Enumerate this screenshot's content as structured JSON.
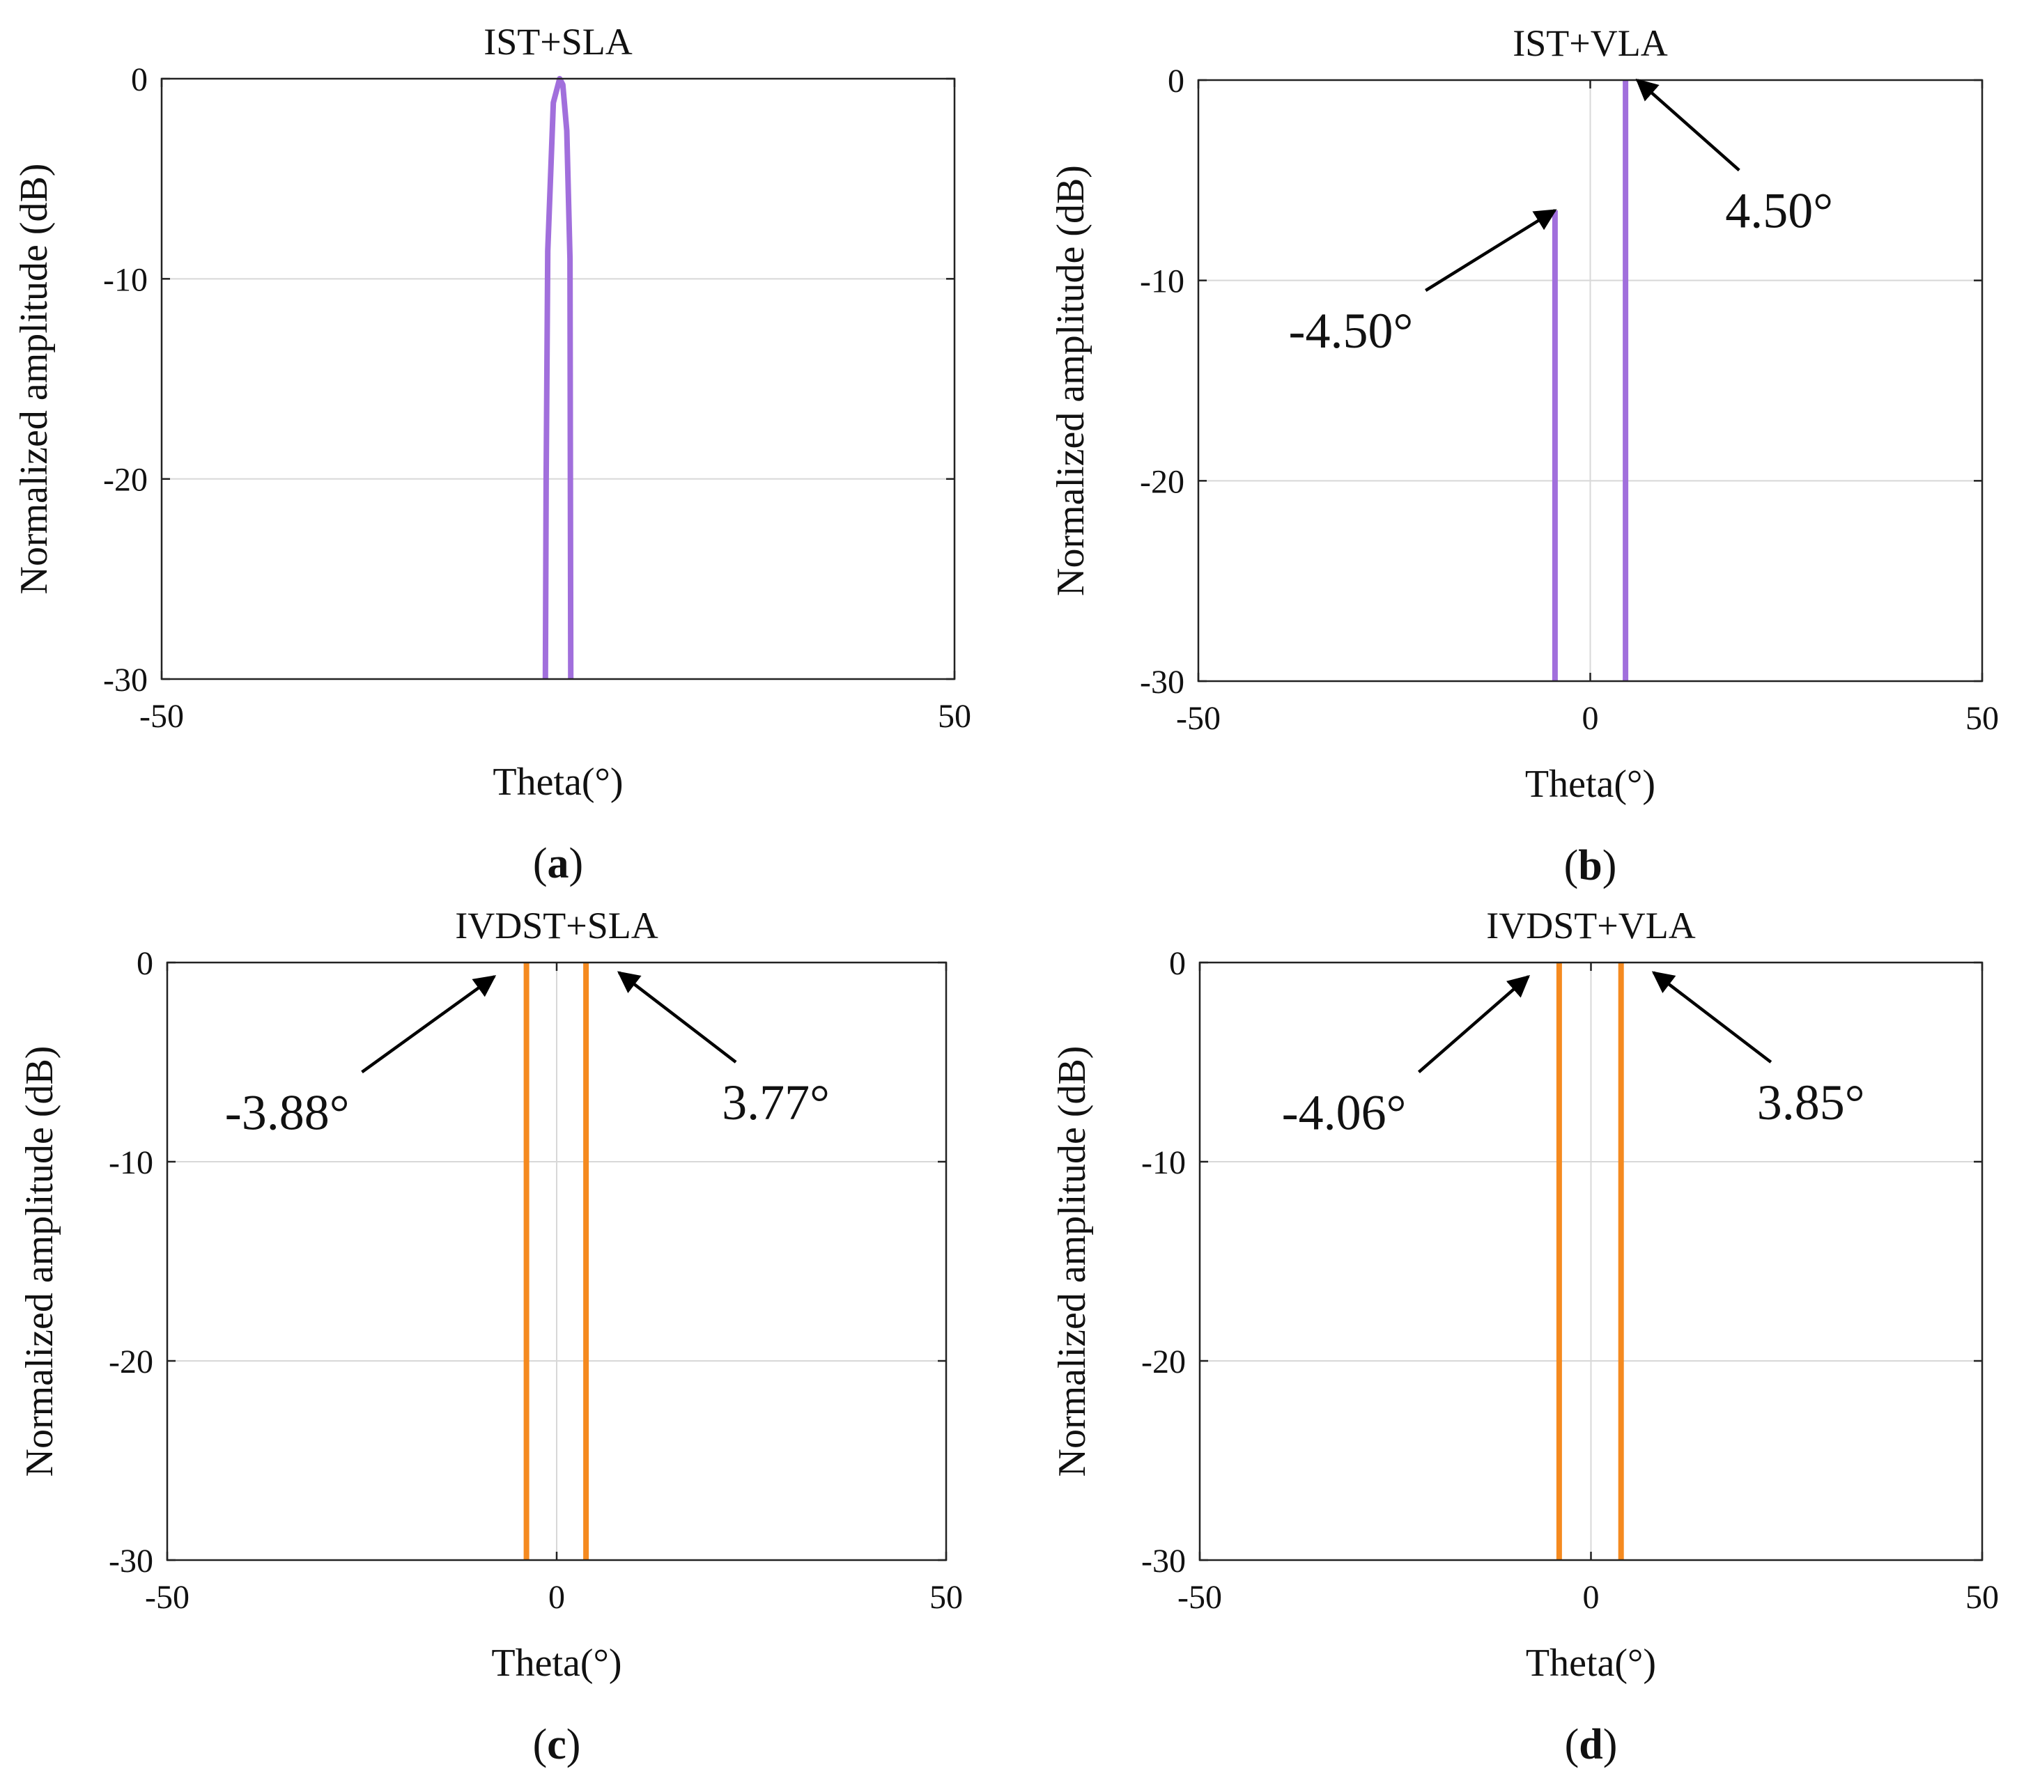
{
  "figure": {
    "arrow_color": "#000000",
    "grid_color": "#d8d8d8",
    "axis_color": "#222222"
  },
  "chart_data": [
    {
      "type": "line",
      "panel": "a",
      "caption_letter": "a",
      "title": "IST+SLA",
      "xlabel": "Theta(°)",
      "ylabel": "Normalized amplitude (dB)",
      "xlim": [
        -50,
        50
      ],
      "ylim": [
        -30,
        0
      ],
      "xticks": [
        -50,
        50
      ],
      "xtick_labels": [
        "-50",
        "50"
      ],
      "yticks": [
        0,
        -10,
        -20,
        -30
      ],
      "ytick_labels": [
        "0",
        "-10",
        "-20",
        "-30"
      ],
      "color": "#a16fdc",
      "series": [
        {
          "name": "IST+SLA",
          "x": [
            -1.6,
            -1.5,
            -1.3,
            -0.6,
            0.2,
            0.6,
            1.1,
            1.5,
            1.6
          ],
          "y": [
            -30,
            -20,
            -8.6,
            -1.2,
            0,
            -0.3,
            -2.6,
            -9.0,
            -30
          ]
        }
      ],
      "annotations": []
    },
    {
      "type": "line",
      "panel": "b",
      "caption_letter": "b",
      "title": "IST+VLA",
      "xlabel": "Theta(°)",
      "ylabel": "Normalized amplitude (dB)",
      "xlim": [
        -50,
        50
      ],
      "ylim": [
        -30,
        0
      ],
      "xticks": [
        -50,
        0,
        50
      ],
      "xtick_labels": [
        "-50",
        "0",
        "50"
      ],
      "yticks": [
        0,
        -10,
        -20,
        -30
      ],
      "ytick_labels": [
        "0",
        "-10",
        "-20",
        "-30"
      ],
      "color": "#a16fdc",
      "series": [
        {
          "name": "peak -4.50",
          "x": [
            -4.5,
            -4.5
          ],
          "y": [
            -30,
            -6.5
          ]
        },
        {
          "name": "peak 4.50",
          "x": [
            4.5,
            4.5
          ],
          "y": [
            -30,
            0
          ]
        }
      ],
      "annotations": [
        {
          "text": "-4.50°",
          "point": [
            -4.5,
            -6.5
          ],
          "from": [
            -21,
            -10.5
          ]
        },
        {
          "text": "4.50°",
          "point": [
            6.0,
            0
          ],
          "from": [
            19,
            -4.5
          ]
        }
      ]
    },
    {
      "type": "line",
      "panel": "c",
      "caption_letter": "c",
      "title": "IVDST+SLA",
      "xlabel": "Theta(°)",
      "ylabel": "Normalized amplitude (dB)",
      "xlim": [
        -50,
        50
      ],
      "ylim": [
        -30,
        0
      ],
      "xticks": [
        -50,
        0,
        50
      ],
      "xtick_labels": [
        "-50",
        "0",
        "50"
      ],
      "yticks": [
        0,
        -10,
        -20,
        -30
      ],
      "ytick_labels": [
        "0",
        "-10",
        "-20",
        "-30"
      ],
      "color": "#f58a1f",
      "series": [
        {
          "name": "peak -3.88",
          "x": [
            -3.88,
            -3.88
          ],
          "y": [
            -30,
            0
          ]
        },
        {
          "name": "peak 3.77",
          "x": [
            3.77,
            3.77
          ],
          "y": [
            -30,
            0
          ]
        }
      ],
      "annotations": [
        {
          "text": "-3.88°",
          "point": [
            -8,
            -0.7
          ],
          "from": [
            -25,
            -5.5
          ]
        },
        {
          "text": "3.77°",
          "point": [
            8,
            -0.5
          ],
          "from": [
            23,
            -5
          ]
        }
      ]
    },
    {
      "type": "line",
      "panel": "d",
      "caption_letter": "d",
      "title": "IVDST+VLA",
      "xlabel": "Theta(°)",
      "ylabel": "Normalized amplitude (dB)",
      "xlim": [
        -50,
        50
      ],
      "ylim": [
        -30,
        0
      ],
      "xticks": [
        -50,
        0,
        50
      ],
      "xtick_labels": [
        "-50",
        "0",
        "50"
      ],
      "yticks": [
        0,
        -10,
        -20,
        -30
      ],
      "ytick_labels": [
        "0",
        "-10",
        "-20",
        "-30"
      ],
      "color": "#f58a1f",
      "series": [
        {
          "name": "peak -4.06",
          "x": [
            -4.06,
            -4.06
          ],
          "y": [
            -30,
            0
          ]
        },
        {
          "name": "peak 3.85",
          "x": [
            3.85,
            3.85
          ],
          "y": [
            -30,
            0
          ]
        }
      ],
      "annotations": [
        {
          "text": "-4.06°",
          "point": [
            -8,
            -0.7
          ],
          "from": [
            -22,
            -5.5
          ]
        },
        {
          "text": "3.85°",
          "point": [
            8,
            -0.5
          ],
          "from": [
            23,
            -5
          ]
        }
      ]
    }
  ]
}
